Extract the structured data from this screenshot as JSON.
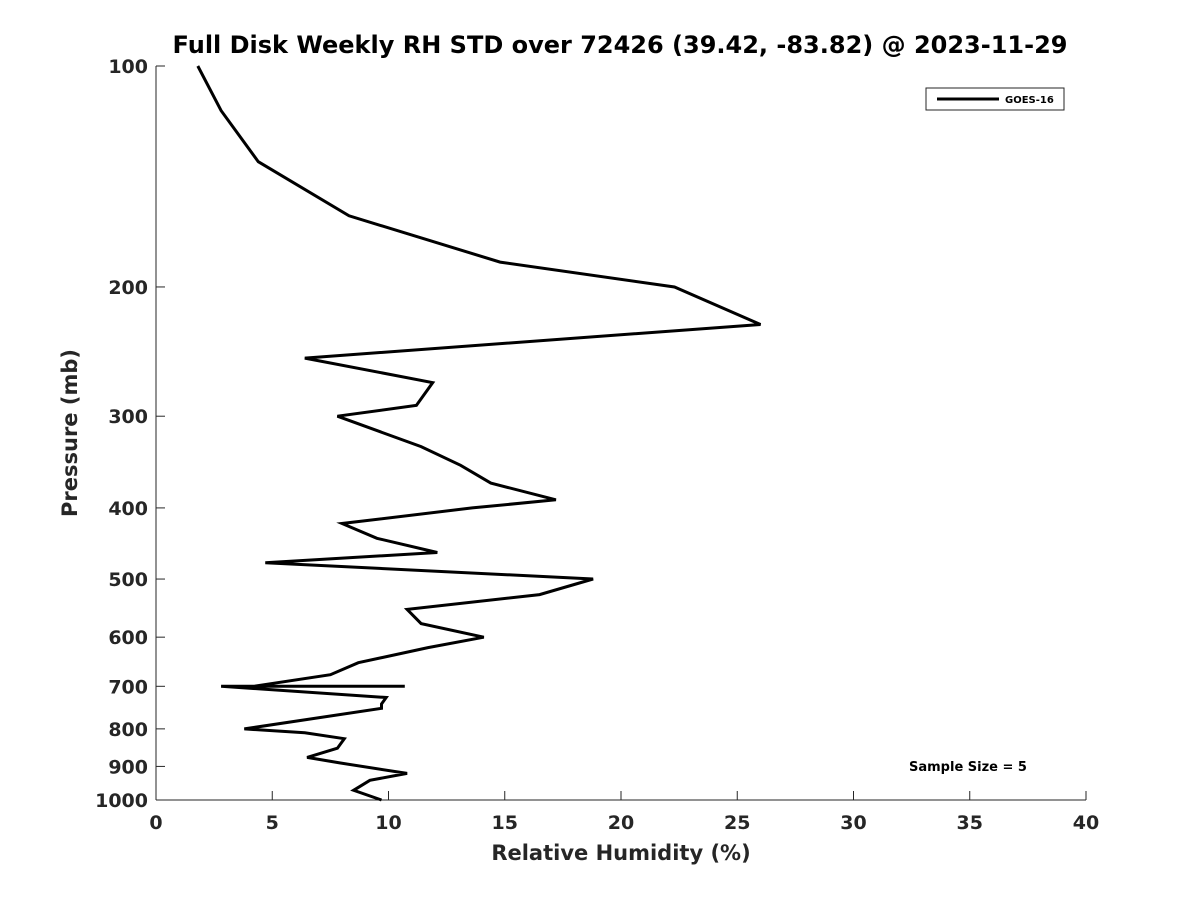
{
  "chart_data": {
    "type": "line",
    "title": "Full Disk Weekly RH STD over 72426 (39.42, -83.82) @ 2023-11-29",
    "xlabel": "Relative Humidity (%)",
    "ylabel": "Pressure (mb)",
    "xlim": [
      0,
      40
    ],
    "ylim": [
      1000,
      100
    ],
    "y_scale": "log",
    "xticks": [
      "0",
      "5",
      "10",
      "15",
      "20",
      "25",
      "30",
      "35",
      "40"
    ],
    "yticks": [
      "100",
      "200",
      "300",
      "400",
      "500",
      "600",
      "700",
      "800",
      "900",
      "1000"
    ],
    "legend": {
      "placement": "top-right",
      "entries": [
        "GOES-16"
      ]
    },
    "annotation": "Sample Size = 5",
    "grid": false,
    "series": [
      {
        "name": "GOES-16",
        "color": "#000000",
        "x": [
          1.8,
          2.8,
          4.4,
          8.3,
          14.8,
          22.3,
          26.0,
          6.4,
          11.9,
          11.2,
          7.8,
          11.4,
          13.1,
          14.4,
          17.2,
          13.6,
          8.0,
          9.5,
          12.1,
          4.7,
          18.8,
          16.5,
          10.8,
          11.4,
          14.1,
          11.7,
          8.7,
          7.5,
          4.2,
          10.7,
          2.8,
          9.9,
          9.7,
          9.7,
          3.8,
          6.4,
          8.1,
          7.8,
          6.5,
          7.9,
          10.8,
          9.2,
          8.5,
          9.7
        ],
        "y": [
          100,
          115,
          135,
          160,
          185,
          200,
          225,
          250,
          270,
          290,
          300,
          330,
          350,
          370,
          390,
          400,
          420,
          440,
          460,
          475,
          500,
          525,
          550,
          575,
          600,
          620,
          650,
          675,
          700,
          700,
          700,
          725,
          740,
          750,
          800,
          810,
          825,
          850,
          875,
          890,
          920,
          940,
          970,
          1000
        ]
      }
    ]
  }
}
